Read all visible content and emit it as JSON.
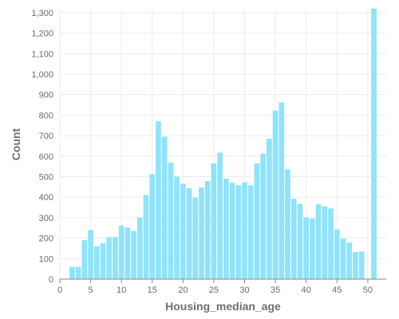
{
  "chart_data": {
    "type": "bar",
    "xlabel": "Housing_median_age",
    "ylabel": "Count",
    "xlim": [
      0,
      53
    ],
    "ylim": [
      0,
      1300
    ],
    "x_ticks": [
      0,
      5,
      10,
      15,
      20,
      25,
      30,
      35,
      40,
      45,
      50
    ],
    "y_ticks": [
      0,
      100,
      200,
      300,
      400,
      500,
      600,
      700,
      800,
      900,
      1000,
      1100,
      1200,
      1300
    ],
    "y_tick_labels": [
      "0",
      "100",
      "200",
      "300",
      "400",
      "500",
      "600",
      "700",
      "800",
      "900",
      "1,000",
      "1,100",
      "1,200",
      "1,300"
    ],
    "x_tick_labels": [
      "0",
      "5",
      "10",
      "15",
      "20",
      "25",
      "30",
      "35",
      "40",
      "45",
      "50"
    ],
    "grid": true,
    "bar_color": "#8fe3fb",
    "x": [
      1,
      2,
      3,
      4,
      5,
      6,
      7,
      8,
      9,
      10,
      11,
      12,
      13,
      14,
      15,
      16,
      17,
      18,
      19,
      20,
      21,
      22,
      23,
      24,
      25,
      26,
      27,
      28,
      29,
      30,
      31,
      32,
      33,
      34,
      35,
      36,
      37,
      38,
      39,
      40,
      41,
      42,
      43,
      44,
      45,
      46,
      47,
      48,
      49,
      50,
      51,
      52
    ],
    "values": [
      0,
      60,
      60,
      190,
      240,
      160,
      175,
      205,
      205,
      262,
      252,
      235,
      300,
      410,
      512,
      770,
      695,
      568,
      500,
      465,
      443,
      397,
      447,
      478,
      565,
      617,
      490,
      470,
      458,
      472,
      458,
      565,
      612,
      685,
      822,
      862,
      535,
      392,
      367,
      302,
      295,
      365,
      355,
      345,
      242,
      198,
      178,
      132,
      135,
      0,
      1320,
      0
    ]
  }
}
